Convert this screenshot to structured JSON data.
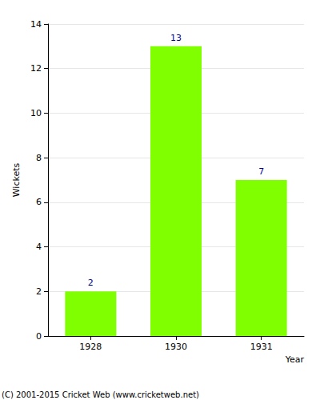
{
  "chart_data": {
    "type": "bar",
    "x_label": "Year",
    "y_label": "Wickets",
    "categories": [
      "1928",
      "1930",
      "1931"
    ],
    "values": [
      2,
      13,
      7
    ],
    "color": "#80ff00",
    "ylim": [
      0,
      14
    ],
    "yticks": [
      0,
      2,
      4,
      6,
      8,
      10,
      12,
      14
    ],
    "grid": true,
    "data_labels": true,
    "annotations": [
      "(C) 2001-2015 Cricket Web (www.cricketweb.net)"
    ]
  }
}
